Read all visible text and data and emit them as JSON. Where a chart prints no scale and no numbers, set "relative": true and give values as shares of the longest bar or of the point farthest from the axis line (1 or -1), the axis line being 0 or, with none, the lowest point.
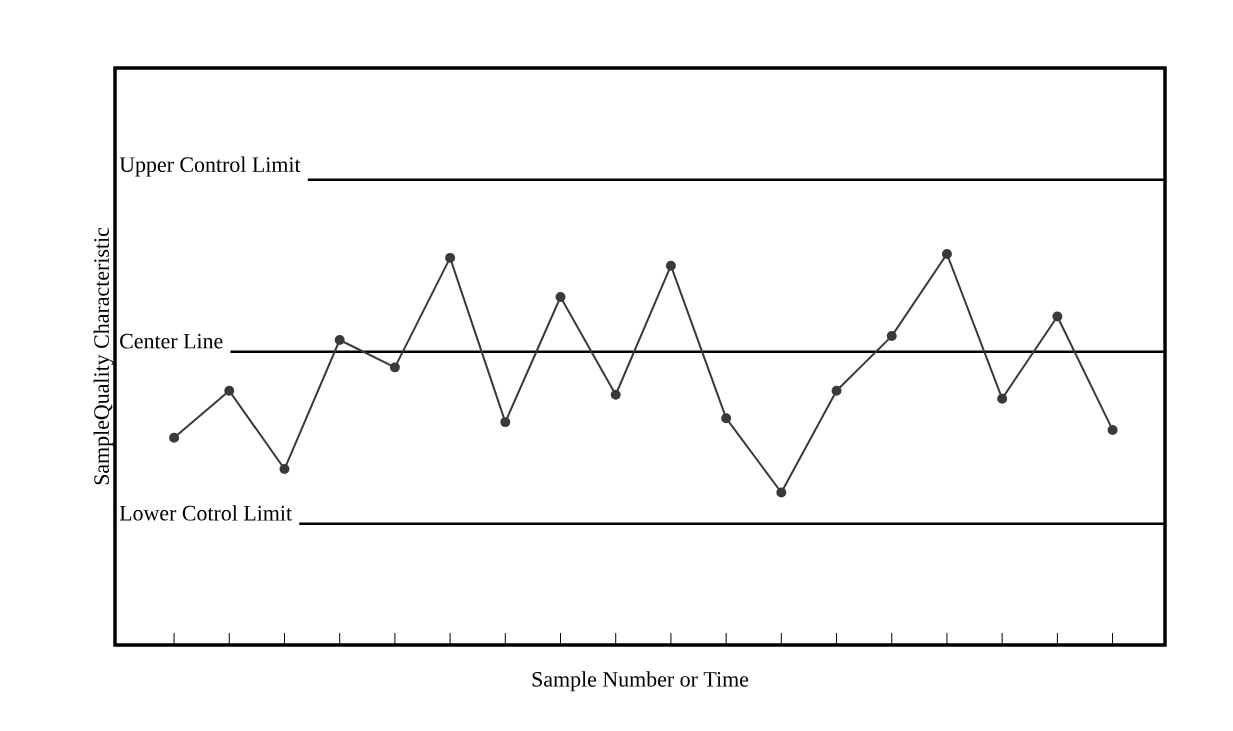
{
  "chart_data": {
    "type": "line",
    "relative": true,
    "xlabel": "Sample Number or Time",
    "ylabel": "SampleQuality Characteristic",
    "categories": [
      null,
      null,
      null,
      null,
      null,
      null,
      null,
      null,
      null,
      null,
      null,
      null,
      null,
      null,
      null,
      null,
      null,
      null
    ],
    "series": [
      {
        "color": "#3a3a3a",
        "values": [
          0.53,
          0.65,
          0.45,
          0.78,
          0.71,
          0.99,
          0.57,
          0.89,
          0.64,
          0.97,
          0.58,
          0.39,
          0.65,
          0.79,
          1,
          0.63,
          0.84,
          0.55
        ]
      }
    ],
    "ref_lines": [
      {
        "axis": "y",
        "value": 1.19,
        "label": "Upper Control Limit",
        "color": "#000000"
      },
      {
        "axis": "y",
        "value": 0.75,
        "label": "Center Line",
        "color": "#000000"
      },
      {
        "axis": "y",
        "value": 0.31,
        "label": "Lower Cotrol Limit",
        "color": "#000000"
      }
    ],
    "marker": "circle",
    "line_style": "solid",
    "grid": false
  }
}
